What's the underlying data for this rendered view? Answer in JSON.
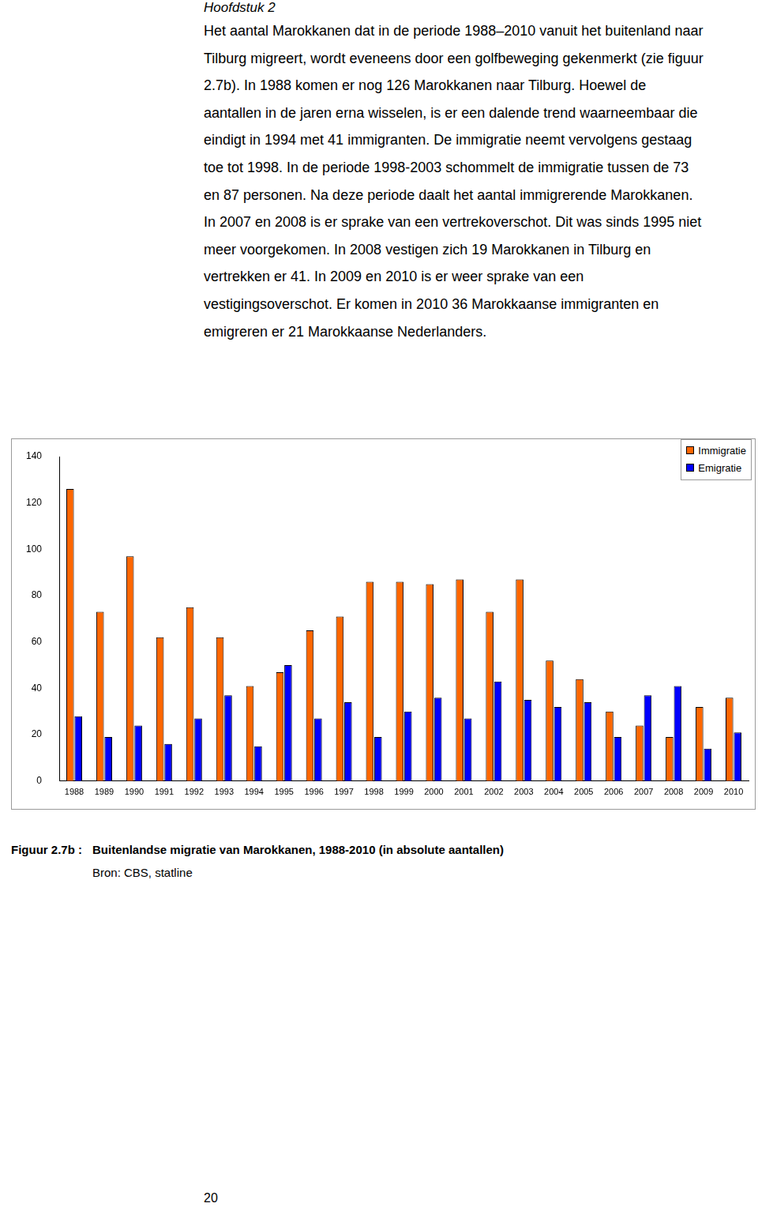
{
  "header": "Hoofdstuk 2",
  "paragraph_lines": [
    "Het aantal Marokkanen dat in de periode 1988–2010 vanuit het buitenland naar",
    "Tilburg migreert, wordt eveneens door een golfbeweging gekenmerkt (zie figuur",
    "2.7b). In 1988 komen er nog 126 Marokkanen naar Tilburg. Hoewel de",
    "aantallen in de jaren erna wisselen, is er een dalende trend waarneembaar die",
    "eindigt in 1994 met 41 immigranten. De immigratie neemt vervolgens gestaag",
    "toe tot 1998. In de periode 1998-2003 schommelt de immigratie tussen de 73",
    "en 87 personen. Na deze periode daalt het aantal immigrerende Marokkanen.",
    "In 2007 en 2008 is er sprake van een vertrekoverschot. Dit was sinds 1995 niet",
    "meer voorgekomen. In 2008 vestigen zich 19 Marokkanen in Tilburg en",
    "vertrekken er 41. In 2009 en 2010 is er weer sprake van een",
    "vestigingsoverschot. Er komen in 2010 36 Marokkaanse immigranten en",
    "emigreren er 21 Marokkaanse Nederlanders."
  ],
  "chart_data": {
    "type": "bar",
    "categories": [
      "1988",
      "1989",
      "1990",
      "1991",
      "1992",
      "1993",
      "1994",
      "1995",
      "1996",
      "1997",
      "1998",
      "1999",
      "2000",
      "2001",
      "2002",
      "2003",
      "2004",
      "2005",
      "2006",
      "2007",
      "2008",
      "2009",
      "2010"
    ],
    "series": [
      {
        "name": "Immigratie",
        "color": "#ff6600",
        "values": [
          126,
          73,
          97,
          62,
          75,
          62,
          41,
          47,
          65,
          71,
          86,
          86,
          85,
          87,
          73,
          87,
          52,
          44,
          30,
          24,
          19,
          32,
          36
        ]
      },
      {
        "name": "Emigratie",
        "color": "#0000ff",
        "values": [
          28,
          19,
          24,
          16,
          27,
          37,
          15,
          50,
          27,
          34,
          19,
          30,
          36,
          27,
          43,
          35,
          32,
          34,
          19,
          37,
          41,
          14,
          21
        ]
      }
    ],
    "ylim": [
      0,
      140
    ],
    "yticks": [
      0,
      20,
      40,
      60,
      80,
      100,
      120,
      140
    ],
    "grid": false,
    "legend": "upper right"
  },
  "caption_label": "Figuur 2.7b :",
  "caption": "Buitenlandse migratie van Marokkanen, 1988-2010 (in absolute aantallen)",
  "source": "Bron: CBS, statline",
  "page_number": "20"
}
